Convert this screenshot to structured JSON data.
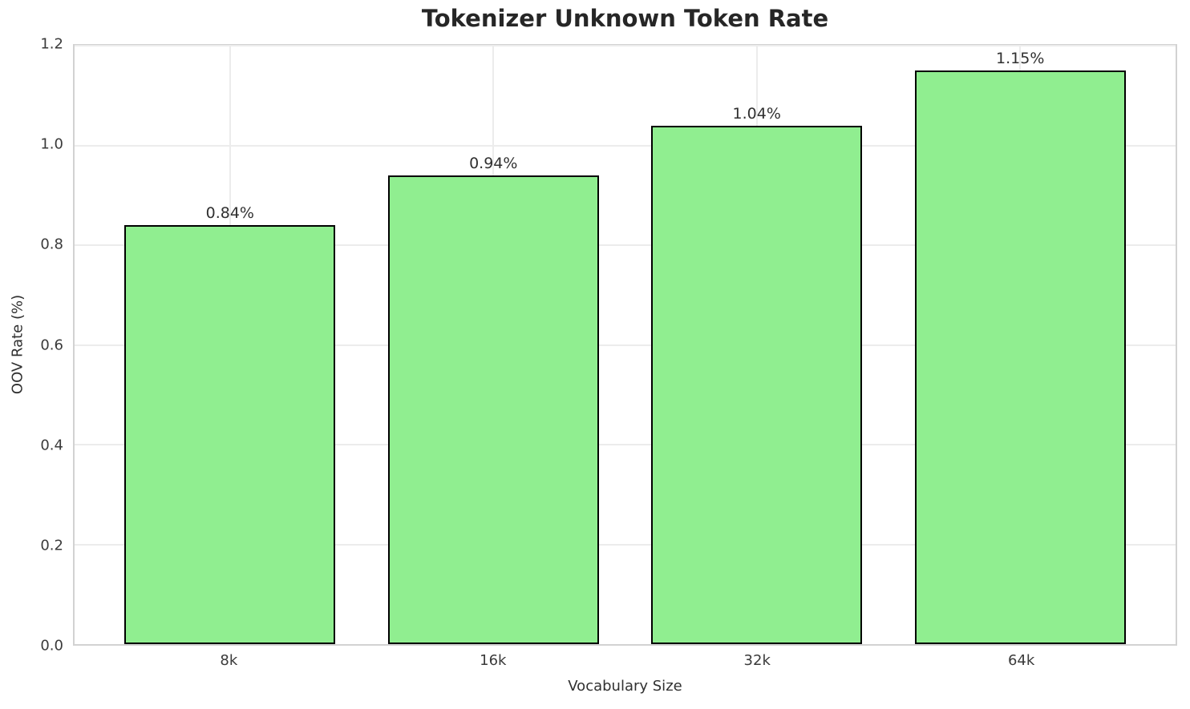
{
  "chart_data": {
    "type": "bar",
    "title": "Tokenizer Unknown Token Rate",
    "xlabel": "Vocabulary Size",
    "ylabel": "OOV Rate (%)",
    "categories": [
      "8k",
      "16k",
      "32k",
      "64k"
    ],
    "values": [
      0.84,
      0.94,
      1.04,
      1.15
    ],
    "bar_labels": [
      "0.84%",
      "0.94%",
      "1.04%",
      "1.15%"
    ],
    "ylim": [
      0.0,
      1.2
    ],
    "yticks": [
      0.0,
      0.2,
      0.4,
      0.6,
      0.8,
      1.0,
      1.2
    ],
    "ytick_labels": [
      "0.0",
      "0.2",
      "0.4",
      "0.6",
      "0.8",
      "1.0",
      "1.2"
    ],
    "grid": true,
    "legend": "none",
    "bar_color": "#90EE90",
    "bar_edge_color": "#000000",
    "grid_color": "#ececec",
    "spine_color": "#d2d2d2",
    "title_color": "#262626",
    "text_color": "#303030"
  }
}
